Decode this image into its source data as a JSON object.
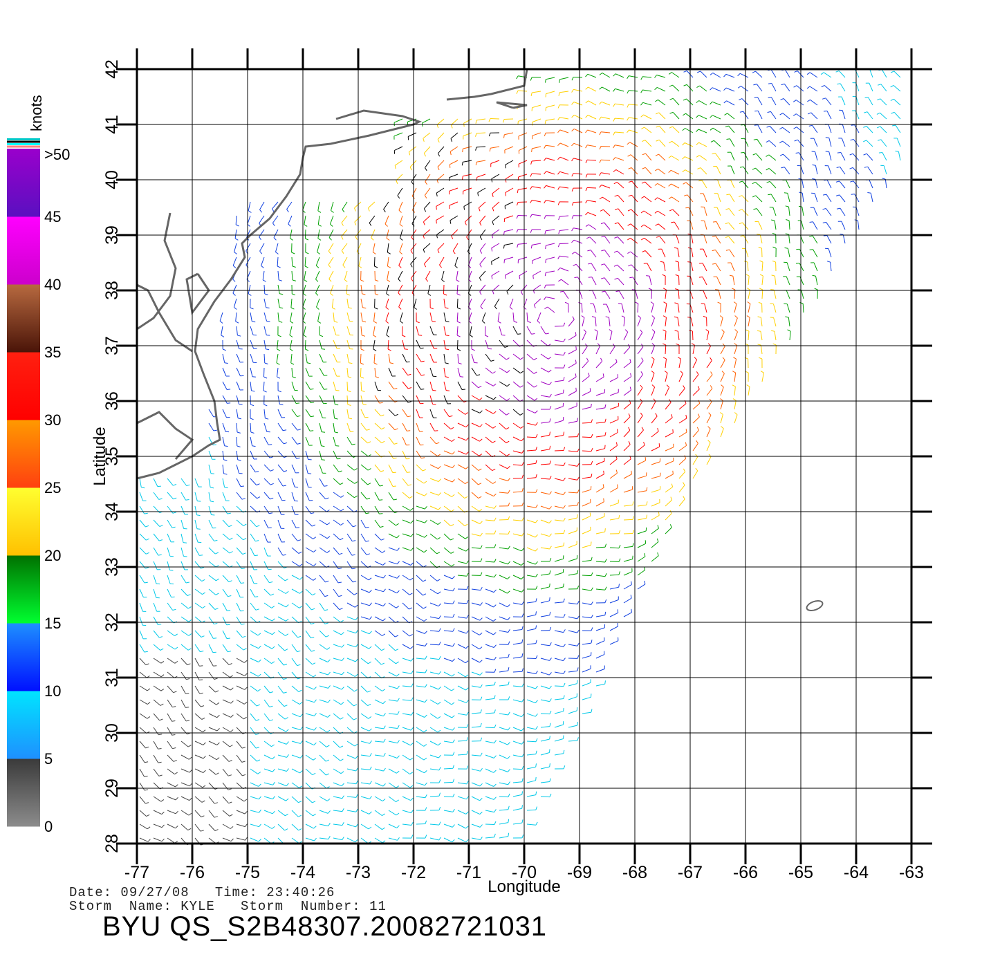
{
  "map": {
    "xlabel": "Longitude",
    "ylabel": "Latitude",
    "lon_range": [
      -77,
      -63
    ],
    "lat_range": [
      28,
      42
    ],
    "lon_ticks": [
      "-77",
      "-76",
      "-75",
      "-74",
      "-73",
      "-72",
      "-71",
      "-70",
      "-69",
      "-68",
      "-67",
      "-66",
      "-65",
      "-64",
      "-63"
    ],
    "lat_ticks": [
      "28",
      "29",
      "30",
      "31",
      "32",
      "33",
      "34",
      "35",
      "36",
      "37",
      "38",
      "39",
      "40",
      "41",
      "42"
    ],
    "grid": true,
    "swath_description": "QuikSCAT wind barbs over western Atlantic (Hurricane Kyle)",
    "coastline_color": "#666666"
  },
  "colorbar": {
    "unit_label": "knots",
    "tick_labels": [
      "0",
      "5",
      "10",
      "15",
      "20",
      "25",
      "30",
      "35",
      "40",
      "45",
      ">50"
    ],
    "bands": [
      {
        "from": 0,
        "to": 5,
        "top": "#3a3a3a",
        "bottom": "#8c8c8c"
      },
      {
        "from": 5,
        "to": 10,
        "top": "#00e5ff",
        "bottom": "#1e90ff"
      },
      {
        "from": 10,
        "to": 15,
        "top": "#1e90ff",
        "bottom": "#0010ff"
      },
      {
        "from": 15,
        "to": 20,
        "top": "#007000",
        "bottom": "#00ff30"
      },
      {
        "from": 20,
        "to": 25,
        "top": "#ffff30",
        "bottom": "#ffc000"
      },
      {
        "from": 25,
        "to": 30,
        "top": "#ff9a00",
        "bottom": "#ff4010"
      },
      {
        "from": 30,
        "to": 35,
        "top": "#ff2010",
        "bottom": "#ff0000"
      },
      {
        "from": 35,
        "to": 40,
        "top": "#b86a40",
        "bottom": "#4a1408"
      },
      {
        "from": 40,
        "to": 45,
        "top": "#ff00ff",
        "bottom": "#cc00cc"
      },
      {
        "from": 45,
        "to": 50,
        "top": "#9a00cc",
        "bottom": "#5a10c0"
      }
    ],
    "extra_stripes": [
      "#00c8c8",
      "#000000",
      "#00ffff",
      "#ff8080"
    ]
  },
  "speed_colors": {
    "calm": "#444444",
    "light": "#00c8e8",
    "moderate": "#1040e0",
    "fresh": "#00a000",
    "strong": "#ffd000",
    "gale": "#ff6000",
    "severe": "#ff0000",
    "storm": "#a000c0",
    "rain_flag": "#000000"
  },
  "footer": {
    "date_line": "Date: 09/27/08   Time: 23:40:26",
    "storm_line": "Storm  Name: KYLE   Storm  Number: 11",
    "product": "BYU  QS_S2B48307.20082721031"
  }
}
